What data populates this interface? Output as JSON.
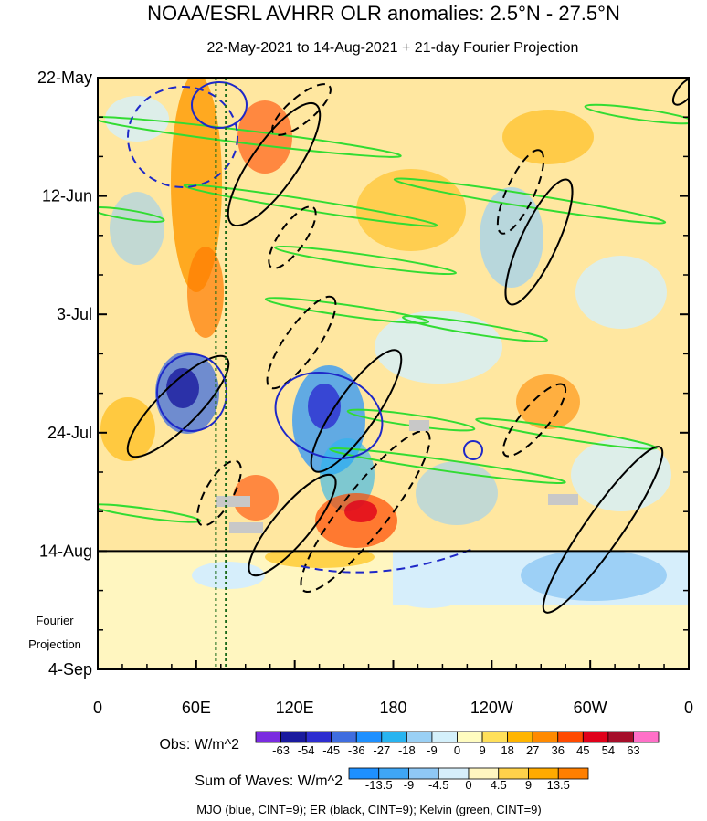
{
  "chart_data": {
    "type": "heatmap",
    "title": "NOAA/ESRL AVHRR OLR anomalies: 2.5°N - 27.5°N",
    "subtitle": "22-May-2021 to 14-Aug-2021 + 21-day Fourier Projection",
    "x_ticks": [
      "0",
      "60E",
      "120E",
      "180",
      "120W",
      "60W",
      "0"
    ],
    "x_range_deg": [
      0,
      360
    ],
    "y_ticks": [
      "22-May",
      "12-Jun",
      "3-Jul",
      "24-Jul",
      "14-Aug",
      "4-Sep"
    ],
    "y_range_days": [
      0,
      105
    ],
    "obs_end_day": 84,
    "projection_label_lines": [
      "Fourier",
      "Projection"
    ],
    "obs_legend": {
      "label": "Obs: W/m^2",
      "ticks": [
        "-63",
        "-54",
        "-45",
        "-36",
        "-27",
        "-18",
        "-9",
        "0",
        "9",
        "18",
        "27",
        "36",
        "45",
        "54",
        "63"
      ],
      "colors": [
        "#7a2ce0",
        "#1a1a9e",
        "#2d2dd0",
        "#3f6ddf",
        "#1e90ff",
        "#28b4f0",
        "#9ad0f5",
        "#d4f0fb",
        "#fffcc0",
        "#ffe05a",
        "#ffb500",
        "#ff8a00",
        "#ff4a00",
        "#e0001a",
        "#a50e2a",
        "#ff70c8"
      ]
    },
    "waves_legend": {
      "label": "Sum of Waves: W/m^2",
      "ticks": [
        "-13.5",
        "-9",
        "-4.5",
        "0",
        "4.5",
        "9",
        "13.5"
      ],
      "colors": [
        "#1e90ff",
        "#3fa6f5",
        "#8fc8f5",
        "#d6eefb",
        "#fff6c0",
        "#ffd24a",
        "#ffaa00",
        "#ff7f00"
      ]
    },
    "contour_note": "MJO (blue, CINT=9); ER (black, CINT=9); Kelvin (green, CINT=9)",
    "series": [
      {
        "name": "MJO",
        "color": "#1e28c8",
        "cint": 9
      },
      {
        "name": "ER",
        "color": "#000000",
        "cint": 9
      },
      {
        "name": "Kelvin",
        "color": "#32dc32",
        "cint": 9
      }
    ],
    "reference_lines_lon_deg": [
      72,
      78
    ]
  }
}
